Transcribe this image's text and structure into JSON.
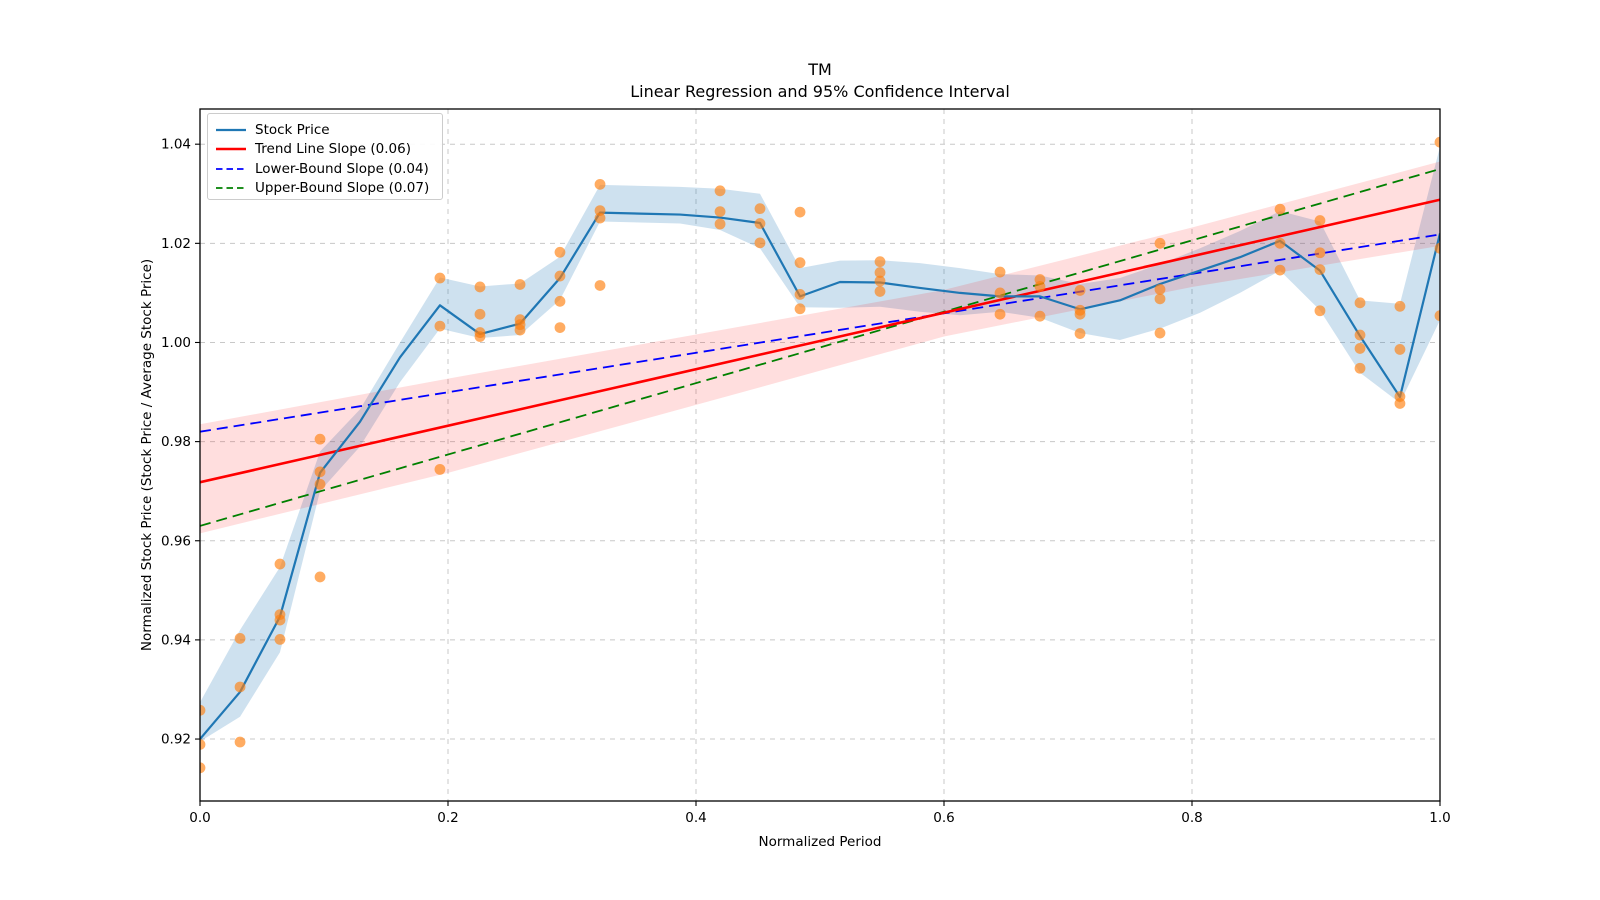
{
  "figure": {
    "title_line1": "TM",
    "title_line2": "Linear Regression and 95% Confidence Interval",
    "xlabel": "Normalized Period",
    "ylabel": "Normalized Stock Price (Stock Price / Average Stock Price)"
  },
  "legend": {
    "position": "upper left",
    "items": [
      {
        "label": "Stock Price",
        "color": "#1f77b4",
        "dash": false,
        "lw": 2.2
      },
      {
        "label": "Trend Line Slope (0.06)",
        "color": "#ff0000",
        "dash": false,
        "lw": 2.6
      },
      {
        "label": "Lower-Bound Slope (0.04)",
        "color": "#0000ff",
        "dash": true,
        "lw": 1.8
      },
      {
        "label": "Upper-Bound Slope (0.07)",
        "color": "#008000",
        "dash": true,
        "lw": 1.8
      }
    ]
  },
  "style": {
    "grid_color": "#c8c8c8",
    "spine_color": "#000000",
    "tick_color": "#000000",
    "background": "#ffffff",
    "stock_line_color": "#1f77b4",
    "stock_band_fill": "rgba(31,119,180,0.22)",
    "scatter_color": "#ff7f0e",
    "trend_color": "#ff0000",
    "lower_color": "#0000ff",
    "upper_color": "#008000",
    "ci_band_fill": "rgba(255,0,0,0.13)"
  },
  "chart_data": {
    "type": "line",
    "title": "TM — Linear Regression and 95% Confidence Interval",
    "xlabel": "Normalized Period",
    "ylabel": "Normalized Stock Price (Stock Price / Average Stock Price)",
    "xlim": [
      0.0,
      1.0
    ],
    "ylim": [
      0.9075,
      1.0471
    ],
    "xticks": [
      0.0,
      0.2,
      0.4,
      0.6,
      0.8,
      1.0
    ],
    "xtick_labels": [
      "0.0",
      "0.2",
      "0.4",
      "0.6",
      "0.8",
      "1.0"
    ],
    "yticks": [
      0.92,
      0.94,
      0.96,
      0.98,
      1.0,
      1.02,
      1.04
    ],
    "ytick_labels": [
      "0.92",
      "0.94",
      "0.96",
      "0.98",
      "1.00",
      "1.02",
      "1.04"
    ],
    "grid": true,
    "legend_position": "upper left",
    "series": [
      {
        "name": "Stock Price rolling band",
        "kind": "band",
        "z": 1,
        "fill": "rgba(31,119,180,0.22)",
        "x": [
          0.0,
          0.0323,
          0.0645,
          0.0968,
          0.129,
          0.1613,
          0.1935,
          0.2258,
          0.2581,
          0.2903,
          0.3226,
          0.3548,
          0.3871,
          0.4194,
          0.4516,
          0.4839,
          0.5161,
          0.5484,
          0.5806,
          0.6129,
          0.6452,
          0.6774,
          0.7097,
          0.7419,
          0.7742,
          0.8065,
          0.8387,
          0.871,
          0.9032,
          0.9355,
          0.9677,
          1.0
        ],
        "top": [
          0.9274,
          0.942,
          0.9547,
          0.978,
          0.9865,
          1.0,
          1.0131,
          1.0113,
          1.0119,
          1.0173,
          1.0318,
          1.0316,
          1.0314,
          1.031,
          1.03,
          1.015,
          1.0165,
          1.0166,
          1.016,
          1.015,
          1.0138,
          1.0135,
          1.0118,
          1.013,
          1.0158,
          1.019,
          1.0225,
          1.0265,
          1.0244,
          1.0085,
          1.0078,
          1.0395
        ],
        "bottom": [
          0.9195,
          0.9245,
          0.9375,
          0.97,
          0.979,
          0.992,
          1.0028,
          1.0009,
          1.0015,
          1.0086,
          1.0244,
          1.0242,
          1.024,
          1.0227,
          1.019,
          1.0071,
          1.007,
          1.0072,
          1.0062,
          1.0055,
          1.0062,
          1.005,
          1.0019,
          1.0005,
          1.0028,
          1.006,
          1.01,
          1.0145,
          1.0065,
          0.9939,
          0.9878,
          1.0045
        ]
      },
      {
        "name": "95% confidence band",
        "kind": "band",
        "z": 2,
        "fill": "rgba(255,0,0,0.13)",
        "x": [
          0.0,
          0.2,
          0.4,
          0.6,
          0.8,
          1.0
        ],
        "top": [
          0.9835,
          0.9927,
          1.0016,
          1.0106,
          1.0232,
          1.0365
        ],
        "bottom": [
          0.9615,
          0.9737,
          0.9874,
          1.0012,
          1.0112,
          1.0195
        ]
      },
      {
        "name": "Upper-Bound Slope (0.07)",
        "kind": "line",
        "z": 3,
        "color": "#008000",
        "width": 1.8,
        "dash": "11 6",
        "x": [
          0.0,
          1.0
        ],
        "y": [
          0.963,
          1.035
        ]
      },
      {
        "name": "Lower-Bound Slope (0.04)",
        "kind": "line",
        "z": 4,
        "color": "#0000ff",
        "width": 1.8,
        "dash": "11 6",
        "x": [
          0.0,
          1.0
        ],
        "y": [
          0.982,
          1.0218
        ]
      },
      {
        "name": "Trend Line Slope (0.06)",
        "kind": "line",
        "z": 5,
        "color": "#ff0000",
        "width": 2.6,
        "dash": null,
        "x": [
          0.0,
          1.0
        ],
        "y": [
          0.9718,
          1.0288
        ]
      },
      {
        "name": "Stock Price",
        "kind": "line",
        "z": 6,
        "color": "#1f77b4",
        "width": 2.2,
        "dash": null,
        "x": [
          0.0,
          0.0323,
          0.0645,
          0.0968,
          0.129,
          0.1613,
          0.1935,
          0.2258,
          0.2581,
          0.2903,
          0.3226,
          0.3548,
          0.3871,
          0.4194,
          0.4516,
          0.4839,
          0.5161,
          0.5484,
          0.5806,
          0.6129,
          0.6452,
          0.6774,
          0.7097,
          0.7419,
          0.7742,
          0.8065,
          0.8387,
          0.871,
          0.9032,
          0.9355,
          0.9677,
          1.0
        ],
        "y": [
          0.92,
          0.9295,
          0.9447,
          0.9737,
          0.984,
          0.997,
          1.0075,
          1.0017,
          1.0038,
          1.013,
          1.0262,
          1.026,
          1.0258,
          1.0252,
          1.0241,
          1.0093,
          1.0122,
          1.0121,
          1.011,
          1.01,
          1.0093,
          1.0093,
          1.0067,
          1.0085,
          1.0118,
          1.0145,
          1.0172,
          1.0205,
          1.0145,
          1.0013,
          0.989,
          1.022
        ]
      },
      {
        "name": "Stock Price samples",
        "kind": "scatter",
        "z": 7,
        "color": "#ff7f0e",
        "opacity": 0.65,
        "radius": 5.4,
        "points": [
          [
            0.0,
            0.9258
          ],
          [
            0.0,
            0.9189
          ],
          [
            0.0,
            0.9142
          ],
          [
            0.0323,
            0.9403
          ],
          [
            0.0323,
            0.9305
          ],
          [
            0.0323,
            0.9194
          ],
          [
            0.0645,
            0.9553
          ],
          [
            0.0645,
            0.9451
          ],
          [
            0.0645,
            0.944
          ],
          [
            0.0645,
            0.9401
          ],
          [
            0.0968,
            0.9805
          ],
          [
            0.0968,
            0.9739
          ],
          [
            0.0968,
            0.9714
          ],
          [
            0.0968,
            0.9527
          ],
          [
            0.1935,
            1.013
          ],
          [
            0.1935,
            1.0033
          ],
          [
            0.1935,
            0.9744
          ],
          [
            0.2258,
            1.0112
          ],
          [
            0.2258,
            1.0057
          ],
          [
            0.2258,
            1.002
          ],
          [
            0.2258,
            1.0012
          ],
          [
            0.2581,
            1.0117
          ],
          [
            0.2581,
            1.0046
          ],
          [
            0.2581,
            1.0036
          ],
          [
            0.2581,
            1.0025
          ],
          [
            0.2903,
            1.0182
          ],
          [
            0.2903,
            1.0134
          ],
          [
            0.2903,
            1.0083
          ],
          [
            0.2903,
            1.003
          ],
          [
            0.3226,
            1.0319
          ],
          [
            0.3226,
            1.0266
          ],
          [
            0.3226,
            1.0251
          ],
          [
            0.3226,
            1.0115
          ],
          [
            0.4194,
            1.0306
          ],
          [
            0.4194,
            1.0264
          ],
          [
            0.4194,
            1.0239
          ],
          [
            0.4516,
            1.027
          ],
          [
            0.4516,
            1.024
          ],
          [
            0.4516,
            1.0201
          ],
          [
            0.4839,
            1.0263
          ],
          [
            0.4839,
            1.0161
          ],
          [
            0.4839,
            1.0097
          ],
          [
            0.4839,
            1.0068
          ],
          [
            0.5484,
            1.0163
          ],
          [
            0.5484,
            1.0141
          ],
          [
            0.5484,
            1.0124
          ],
          [
            0.5484,
            1.0103
          ],
          [
            0.6452,
            1.0142
          ],
          [
            0.6452,
            1.01
          ],
          [
            0.6452,
            1.0057
          ],
          [
            0.6774,
            1.0127
          ],
          [
            0.6774,
            1.0113
          ],
          [
            0.6774,
            1.0053
          ],
          [
            0.7097,
            1.0105
          ],
          [
            0.7097,
            1.0065
          ],
          [
            0.7097,
            1.0057
          ],
          [
            0.7097,
            1.0018
          ],
          [
            0.7742,
            1.02
          ],
          [
            0.7742,
            1.0107
          ],
          [
            0.7742,
            1.0088
          ],
          [
            0.7742,
            1.0019
          ],
          [
            0.871,
            1.0269
          ],
          [
            0.871,
            1.02
          ],
          [
            0.871,
            1.0146
          ],
          [
            0.9032,
            1.0246
          ],
          [
            0.9032,
            1.0181
          ],
          [
            0.9032,
            1.0147
          ],
          [
            0.9032,
            1.0064
          ],
          [
            0.9355,
            1.008
          ],
          [
            0.9355,
            1.0015
          ],
          [
            0.9355,
            0.9988
          ],
          [
            0.9355,
            0.9948
          ],
          [
            0.9677,
            1.0073
          ],
          [
            0.9677,
            0.9986
          ],
          [
            0.9677,
            0.9891
          ],
          [
            0.9677,
            0.9877
          ],
          [
            1.0,
            1.0404
          ],
          [
            1.0,
            1.019
          ],
          [
            1.0,
            1.0054
          ]
        ]
      }
    ]
  }
}
